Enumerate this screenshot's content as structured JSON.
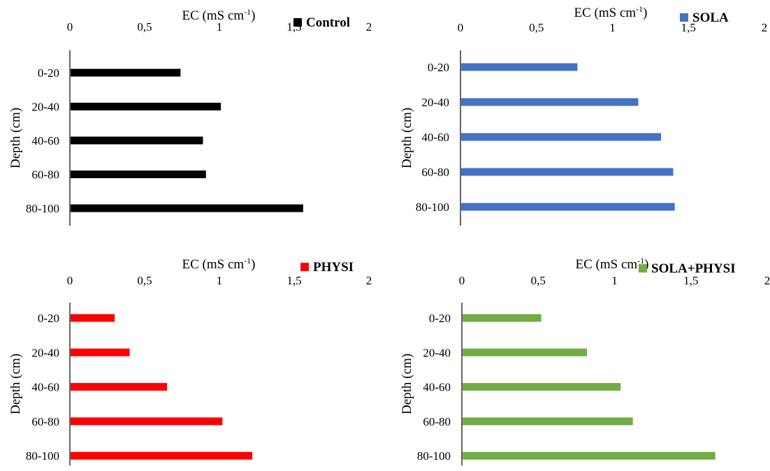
{
  "chart_data": [
    {
      "type": "bar",
      "orientation": "horizontal",
      "xlabel": "EC (mS cm",
      "xlabel_sup": "-1",
      "xlabel_close": ")",
      "ylabel": "Depth  (cm)",
      "xticks": [
        "0",
        "0,5",
        "1",
        "1,5",
        "2"
      ],
      "xlim": [
        0,
        2
      ],
      "xaxis_position": "top",
      "legend_position": "top-right",
      "categories": [
        "0-20",
        "20-40",
        "40-60",
        "60-80",
        "80-100"
      ],
      "series": [
        {
          "name": "Control",
          "color": "#000000",
          "values": [
            0.74,
            1.01,
            0.89,
            0.91,
            1.56
          ]
        }
      ]
    },
    {
      "type": "bar",
      "orientation": "horizontal",
      "xlabel": "EC (mS cm",
      "xlabel_sup": "-1",
      "xlabel_close": ")",
      "ylabel": "Depth  (cm)",
      "xticks": [
        "0",
        "0,5",
        "1",
        "1,5",
        "2"
      ],
      "xlim": [
        0,
        2
      ],
      "xaxis_position": "top",
      "legend_position": "top-right",
      "categories": [
        "0-20",
        "20-40",
        "40-60",
        "60-80",
        "80-100"
      ],
      "series": [
        {
          "name": "SOLA",
          "color": "#4472C4",
          "values": [
            0.77,
            1.17,
            1.32,
            1.4,
            1.41
          ]
        }
      ]
    },
    {
      "type": "bar",
      "orientation": "horizontal",
      "xlabel": "EC (mS cm",
      "xlabel_sup": "-1",
      "xlabel_close": ")",
      "ylabel": "Depth  (cm)",
      "xticks": [
        "0",
        "0,5",
        "1",
        "1,5",
        "2"
      ],
      "xlim": [
        0,
        2
      ],
      "xaxis_position": "top",
      "legend_position": "top-right",
      "categories": [
        "0-20",
        "20-40",
        "40-60",
        "60-80",
        "80-100"
      ],
      "series": [
        {
          "name": "PHYSI",
          "color": "#FF0000",
          "values": [
            0.3,
            0.4,
            0.65,
            1.02,
            1.22
          ]
        }
      ]
    },
    {
      "type": "bar",
      "orientation": "horizontal",
      "xlabel": "EC (mS cm",
      "xlabel_sup": "-1",
      "xlabel_close": ")",
      "ylabel": "Depth  (cm)",
      "xticks": [
        "0",
        "0,5",
        "1",
        "1,5",
        "2"
      ],
      "xlim": [
        0,
        2
      ],
      "xaxis_position": "top",
      "legend_position": "top-right",
      "categories": [
        "0-20",
        "20-40",
        "40-60",
        "60-80",
        "80-100"
      ],
      "series": [
        {
          "name": "SOLA+PHYSI",
          "color": "#70AD47",
          "values": [
            0.52,
            0.82,
            1.04,
            1.12,
            1.66
          ]
        }
      ]
    }
  ]
}
